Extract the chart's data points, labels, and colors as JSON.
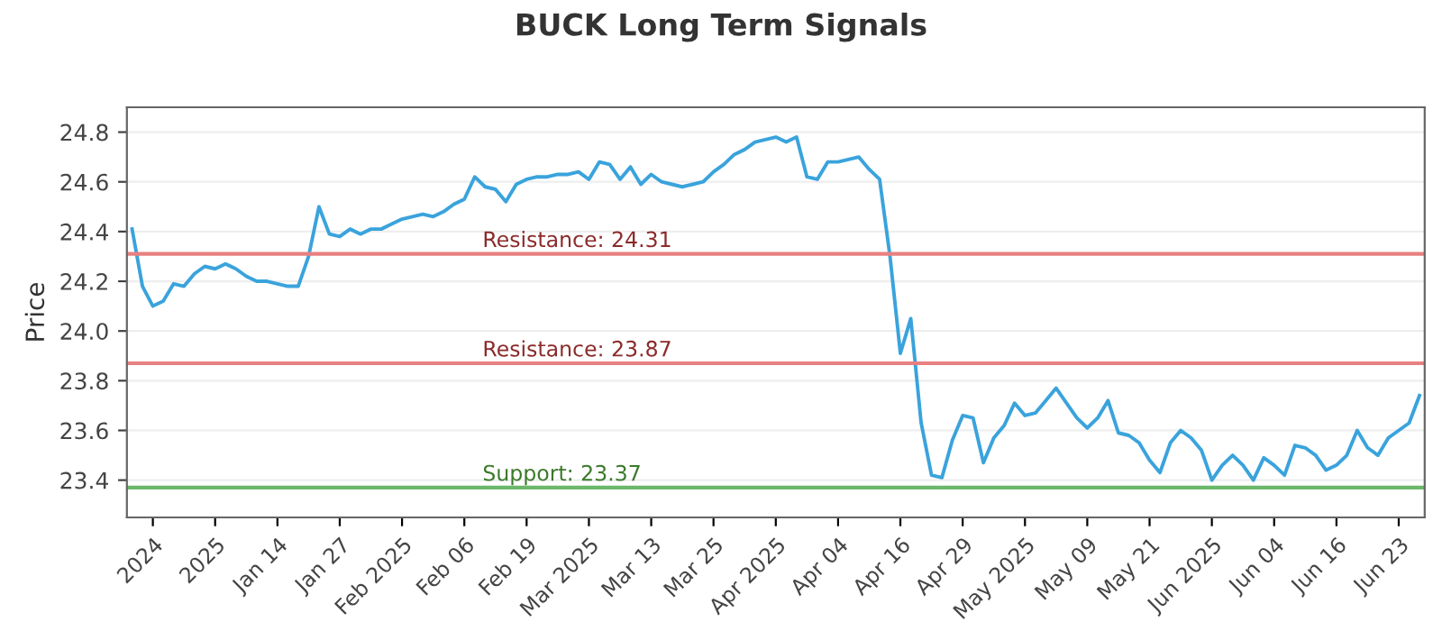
{
  "chart_data": {
    "type": "line",
    "title": "BUCK Long Term Signals",
    "ylabel": "Price",
    "categories": [
      null,
      null,
      "2024",
      null,
      null,
      null,
      null,
      null,
      "2025",
      null,
      null,
      null,
      null,
      null,
      "Jan 14",
      null,
      null,
      null,
      null,
      null,
      "Jan 27",
      null,
      null,
      null,
      null,
      null,
      "Feb 2025",
      null,
      null,
      null,
      null,
      null,
      "Feb 06",
      null,
      null,
      null,
      null,
      null,
      "Feb 19",
      null,
      null,
      null,
      null,
      null,
      "Mar 2025",
      null,
      null,
      null,
      null,
      null,
      "Mar 13",
      null,
      null,
      null,
      null,
      null,
      "Mar 25",
      null,
      null,
      null,
      null,
      null,
      "Apr 2025",
      null,
      null,
      null,
      null,
      null,
      "Apr 04",
      null,
      null,
      null,
      null,
      null,
      "Apr 16",
      null,
      null,
      null,
      null,
      null,
      "Apr 29",
      null,
      null,
      null,
      null,
      null,
      "May 2025",
      null,
      null,
      null,
      null,
      null,
      "May 09",
      null,
      null,
      null,
      null,
      null,
      "May 21",
      null,
      null,
      null,
      null,
      null,
      "Jun 2025",
      null,
      null,
      null,
      null,
      null,
      "Jun 04",
      null,
      null,
      null,
      null,
      null,
      "Jun 16",
      null,
      null,
      null,
      null,
      null,
      "Jun 23",
      null,
      null
    ],
    "series": [
      {
        "color": "#3aa3dc",
        "values": [
          24.41,
          24.18,
          24.1,
          24.12,
          24.19,
          24.18,
          24.23,
          24.26,
          24.25,
          24.27,
          24.25,
          24.22,
          24.2,
          24.2,
          24.19,
          24.18,
          24.18,
          24.3,
          24.5,
          24.39,
          24.38,
          24.41,
          24.39,
          24.41,
          24.41,
          24.43,
          24.45,
          24.46,
          24.47,
          24.46,
          24.48,
          24.51,
          24.53,
          24.62,
          24.58,
          24.57,
          24.52,
          24.59,
          24.61,
          24.62,
          24.62,
          24.63,
          24.63,
          24.64,
          24.61,
          24.68,
          24.67,
          24.61,
          24.66,
          24.59,
          24.63,
          24.6,
          24.59,
          24.58,
          24.59,
          24.6,
          24.64,
          24.67,
          24.71,
          24.73,
          24.76,
          24.77,
          24.78,
          24.76,
          24.78,
          24.62,
          24.61,
          24.68,
          24.68,
          24.69,
          24.7,
          24.65,
          24.61,
          24.3,
          23.91,
          24.05,
          23.63,
          23.42,
          23.41,
          23.56,
          23.66,
          23.65,
          23.47,
          23.57,
          23.62,
          23.71,
          23.66,
          23.67,
          23.72,
          23.77,
          23.71,
          23.65,
          23.61,
          23.65,
          23.72,
          23.59,
          23.58,
          23.55,
          23.48,
          23.43,
          23.55,
          23.6,
          23.57,
          23.52,
          23.4,
          23.46,
          23.5,
          23.46,
          23.4,
          23.49,
          23.46,
          23.42,
          23.54,
          23.53,
          23.5,
          23.44,
          23.46,
          23.5,
          23.6,
          23.53,
          23.5,
          23.57,
          23.6,
          23.63,
          23.74
        ]
      }
    ],
    "ylim": [
      23.25,
      24.9
    ],
    "yticks": [
      23.4,
      23.6,
      23.8,
      {
        "value": 24,
        "label": "24.0"
      },
      24.2,
      24.4,
      24.6,
      24.8
    ],
    "grid": "y",
    "ref_lines": [
      {
        "axis": "y",
        "value": 24.31,
        "label": "Resistance: 24.31",
        "color": "#e88080"
      },
      {
        "axis": "y",
        "value": 23.87,
        "label": "Resistance: 23.87",
        "color": "#e88080"
      },
      {
        "axis": "y",
        "value": 23.37,
        "label": "Support: 23.37",
        "color": "#6ab86a"
      }
    ],
    "line_style": "solid",
    "marker": "none",
    "legend": false
  }
}
